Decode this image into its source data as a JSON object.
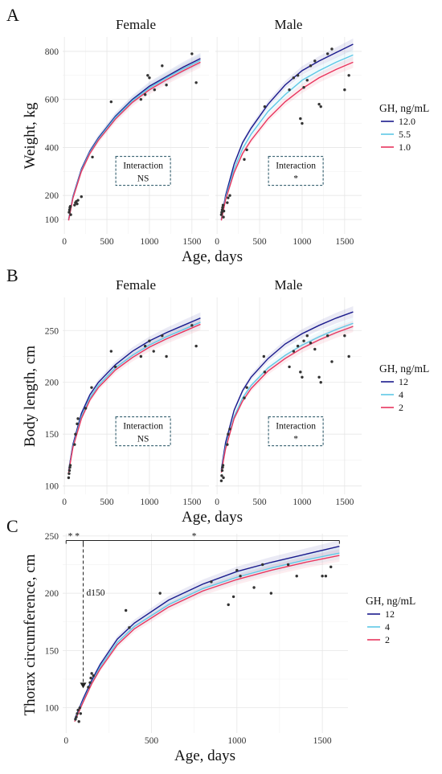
{
  "colors": {
    "high": "#1a1a8c",
    "mid": "#5ec8e6",
    "low": "#e8355e",
    "point": "#333333"
  },
  "chart_data": [
    {
      "panel": "A",
      "type": "line",
      "ylabel": "Weight, kg",
      "xlabel": "Age, days",
      "xlim": [
        -20,
        1700
      ],
      "ylim": [
        40,
        860
      ],
      "xticks": [
        0,
        500,
        1000,
        1500
      ],
      "yticks": [
        100,
        200,
        400,
        600,
        800
      ],
      "legend": {
        "title": "GH, ng/mL",
        "labels": [
          "12.0",
          "5.5",
          "1.0"
        ]
      },
      "facets": [
        {
          "name": "Female",
          "annotation": [
            "Interaction",
            "NS"
          ],
          "series": [
            {
              "name": "12.0",
              "x": [
                50,
                100,
                200,
                300,
                400,
                600,
                800,
                1000,
                1200,
                1400,
                1600
              ],
              "y": [
                100,
                195,
                310,
                385,
                440,
                530,
                600,
                655,
                695,
                735,
                770
              ]
            },
            {
              "name": "5.5",
              "x": [
                50,
                100,
                200,
                300,
                400,
                600,
                800,
                1000,
                1200,
                1400,
                1600
              ],
              "y": [
                98,
                192,
                305,
                380,
                435,
                525,
                595,
                648,
                690,
                728,
                763
              ]
            },
            {
              "name": "1.0",
              "x": [
                50,
                100,
                200,
                300,
                400,
                600,
                800,
                1000,
                1200,
                1400,
                1600
              ],
              "y": [
                96,
                188,
                300,
                375,
                430,
                518,
                588,
                640,
                682,
                720,
                755
              ]
            }
          ],
          "points": {
            "x": [
              55,
              60,
              65,
              70,
              75,
              120,
              130,
              140,
              150,
              160,
              200,
              330,
              550,
              900,
              950,
              980,
              1000,
              1060,
              1150,
              1200,
              1500,
              1550
            ],
            "y": [
              130,
              140,
              150,
              155,
              120,
              160,
              170,
              175,
              165,
              180,
              195,
              360,
              590,
              600,
              620,
              700,
              690,
              640,
              740,
              660,
              790,
              670
            ]
          }
        },
        {
          "name": "Male",
          "annotation": [
            "Interaction",
            "*"
          ],
          "series": [
            {
              "name": "12.0",
              "x": [
                50,
                100,
                200,
                300,
                400,
                600,
                800,
                1000,
                1200,
                1400,
                1600
              ],
              "y": [
                100,
                200,
                330,
                420,
                480,
                580,
                660,
                720,
                760,
                795,
                830
              ]
            },
            {
              "name": "5.5",
              "x": [
                50,
                100,
                200,
                300,
                400,
                600,
                800,
                1000,
                1200,
                1400,
                1600
              ],
              "y": [
                98,
                190,
                310,
                395,
                455,
                550,
                620,
                680,
                720,
                755,
                785
              ]
            },
            {
              "name": "1.0",
              "x": [
                50,
                100,
                200,
                300,
                400,
                600,
                800,
                1000,
                1200,
                1400,
                1600
              ],
              "y": [
                96,
                182,
                295,
                375,
                430,
                520,
                590,
                645,
                690,
                725,
                755
              ]
            }
          ],
          "points": {
            "x": [
              50,
              55,
              60,
              65,
              70,
              75,
              80,
              120,
              130,
              150,
              320,
              350,
              560,
              850,
              900,
              950,
              980,
              1000,
              1020,
              1060,
              1100,
              1150,
              1200,
              1220,
              1300,
              1350,
              1500,
              1550
            ],
            "y": [
              120,
              130,
              140,
              150,
              160,
              110,
              135,
              170,
              190,
              200,
              350,
              390,
              570,
              640,
              690,
              700,
              520,
              500,
              650,
              680,
              740,
              760,
              580,
              570,
              790,
              810,
              640,
              700
            ]
          }
        }
      ]
    },
    {
      "panel": "B",
      "type": "line",
      "ylabel": "Body length, cm",
      "xlabel": "Age, days",
      "xlim": [
        -20,
        1700
      ],
      "ylim": [
        92,
        282
      ],
      "xticks": [
        0,
        500,
        1000,
        1500
      ],
      "yticks": [
        100,
        150,
        200,
        250
      ],
      "legend": {
        "title": "GH, ng/mL",
        "labels": [
          "12",
          "4",
          "2"
        ]
      },
      "facets": [
        {
          "name": "Female",
          "annotation": [
            "Interaction",
            "NS"
          ],
          "series": [
            {
              "name": "12",
              "x": [
                50,
                100,
                200,
                300,
                400,
                600,
                800,
                1000,
                1200,
                1400,
                1600
              ],
              "y": [
                115,
                140,
                170,
                188,
                200,
                217,
                230,
                240,
                248,
                255,
                262
              ]
            },
            {
              "name": "4",
              "x": [
                50,
                100,
                200,
                300,
                400,
                600,
                800,
                1000,
                1200,
                1400,
                1600
              ],
              "y": [
                114,
                138,
                167,
                185,
                197,
                214,
                226,
                236,
                244,
                251,
                258
              ]
            },
            {
              "name": "2",
              "x": [
                50,
                100,
                200,
                300,
                400,
                600,
                800,
                1000,
                1200,
                1400,
                1600
              ],
              "y": [
                113,
                137,
                165,
                183,
                195,
                212,
                224,
                234,
                242,
                249,
                256
              ]
            }
          ],
          "points": {
            "x": [
              50,
              55,
              60,
              65,
              70,
              120,
              130,
              150,
              160,
              250,
              320,
              550,
              600,
              900,
              950,
              1000,
              1050,
              1150,
              1200,
              1500,
              1550
            ],
            "y": [
              108,
              112,
              115,
              118,
              120,
              140,
              150,
              160,
              165,
              175,
              195,
              230,
              215,
              225,
              235,
              240,
              230,
              245,
              225,
              255,
              235
            ]
          }
        },
        {
          "name": "Male",
          "annotation": [
            "Interaction",
            "*"
          ],
          "series": [
            {
              "name": "12",
              "x": [
                50,
                100,
                200,
                300,
                400,
                600,
                800,
                1000,
                1200,
                1400,
                1600
              ],
              "y": [
                116,
                142,
                173,
                192,
                205,
                223,
                237,
                247,
                255,
                262,
                268
              ]
            },
            {
              "name": "4",
              "x": [
                50,
                100,
                200,
                300,
                400,
                600,
                800,
                1000,
                1200,
                1400,
                1600
              ],
              "y": [
                114,
                138,
                167,
                185,
                197,
                214,
                226,
                236,
                244,
                251,
                257
              ]
            },
            {
              "name": "2",
              "x": [
                50,
                100,
                200,
                300,
                400,
                600,
                800,
                1000,
                1200,
                1400,
                1600
              ],
              "y": [
                113,
                136,
                165,
                182,
                194,
                211,
                223,
                233,
                241,
                248,
                254
              ]
            }
          ],
          "points": {
            "x": [
              50,
              55,
              60,
              65,
              70,
              75,
              120,
              130,
              150,
              320,
              350,
              550,
              560,
              850,
              900,
              950,
              980,
              1000,
              1020,
              1060,
              1100,
              1150,
              1200,
              1220,
              1300,
              1350,
              1500,
              1550
            ],
            "y": [
              105,
              110,
              115,
              118,
              120,
              108,
              140,
              150,
              155,
              185,
              195,
              225,
              210,
              215,
              230,
              235,
              210,
              205,
              240,
              245,
              238,
              232,
              205,
              200,
              245,
              220,
              245,
              225
            ]
          }
        }
      ]
    },
    {
      "panel": "C",
      "type": "line",
      "ylabel": "Thorax circumference, cm",
      "xlabel": "Age, days",
      "xlim": [
        -20,
        1650
      ],
      "ylim": [
        78,
        252
      ],
      "xticks": [
        0,
        500,
        1000,
        1500
      ],
      "yticks": [
        100,
        150,
        200,
        250
      ],
      "legend": {
        "title": "GH, ng/mL",
        "labels": [
          "12",
          "4",
          "2"
        ]
      },
      "annotations": {
        "significance_left": "* *",
        "significance_right": "*",
        "arrow_label": "d150"
      },
      "series": [
        {
          "name": "12",
          "x": [
            50,
            100,
            150,
            200,
            300,
            400,
            600,
            800,
            1000,
            1200,
            1400,
            1600
          ],
          "y": [
            90,
            108,
            124,
            138,
            160,
            174,
            194,
            208,
            219,
            227,
            234,
            241
          ]
        },
        {
          "name": "4",
          "x": [
            50,
            100,
            150,
            200,
            300,
            400,
            600,
            800,
            1000,
            1200,
            1400,
            1600
          ],
          "y": [
            89,
            106,
            122,
            136,
            157,
            171,
            190,
            204,
            214,
            222,
            229,
            235
          ]
        },
        {
          "name": "2",
          "x": [
            50,
            100,
            150,
            200,
            300,
            400,
            600,
            800,
            1000,
            1200,
            1400,
            1600
          ],
          "y": [
            88,
            105,
            121,
            134,
            155,
            169,
            188,
            202,
            212,
            220,
            227,
            233
          ]
        }
      ],
      "points": {
        "x": [
          55,
          60,
          65,
          70,
          75,
          80,
          85,
          130,
          140,
          145,
          150,
          160,
          350,
          370,
          550,
          850,
          950,
          980,
          1000,
          1020,
          1100,
          1150,
          1200,
          1300,
          1350,
          1500,
          1520,
          1550
        ],
        "y": [
          90,
          92,
          95,
          98,
          88,
          100,
          95,
          118,
          122,
          126,
          130,
          128,
          185,
          170,
          200,
          210,
          190,
          197,
          220,
          215,
          205,
          225,
          200,
          225,
          215,
          215,
          215,
          223
        ]
      }
    }
  ]
}
